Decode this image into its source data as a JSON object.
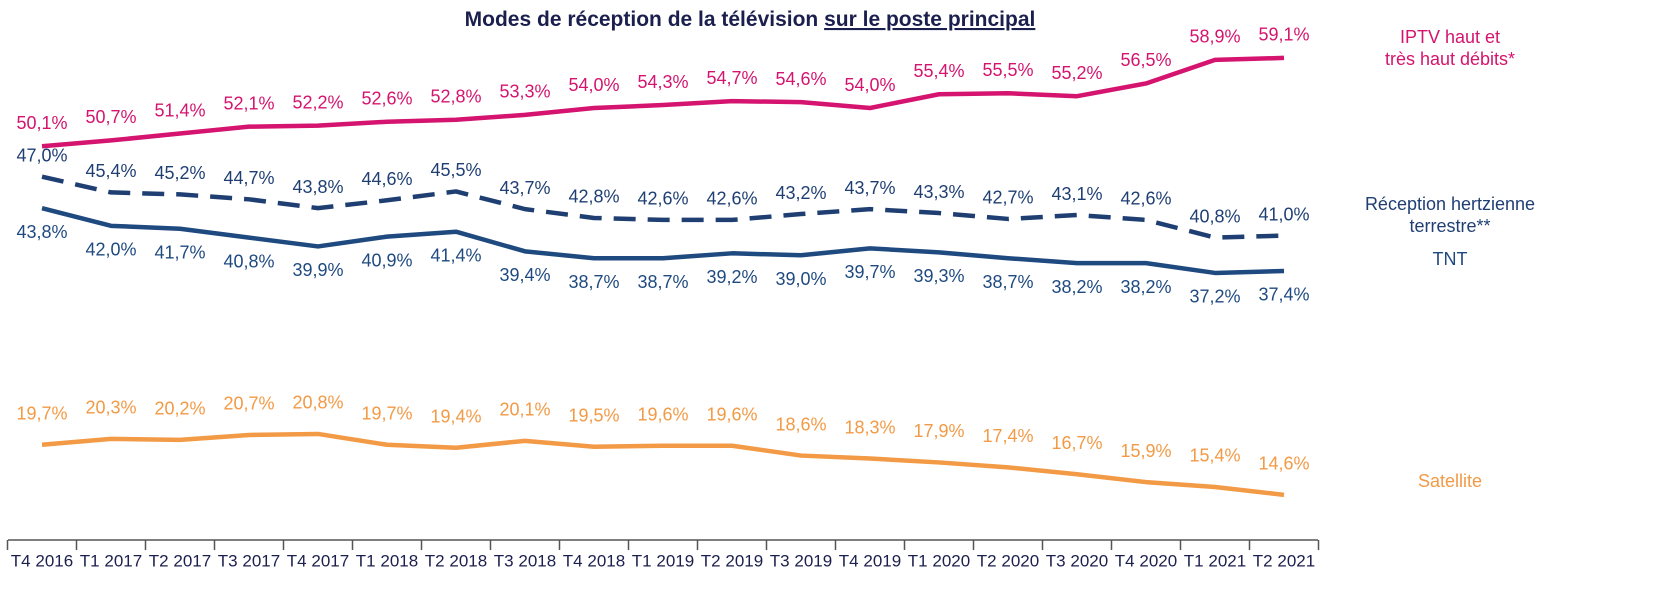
{
  "chart_data": {
    "type": "line",
    "title": "Modes de réception de la télévision",
    "title_underlined": "sur le poste principal",
    "categories": [
      "T4 2016",
      "T1 2017",
      "T2 2017",
      "T3 2017",
      "T4 2017",
      "T1 2018",
      "T2 2018",
      "T3 2018",
      "T4 2018",
      "T1 2019",
      "T2 2019",
      "T3 2019",
      "T4 2019",
      "T1 2020",
      "T2 2020",
      "T3 2020",
      "T4 2020",
      "T1 2021",
      "T2 2021"
    ],
    "ylim": [
      10,
      65
    ],
    "series": [
      {
        "name": "IPTV haut et\ntrès haut débits*",
        "color": "#d4146e",
        "dash": false,
        "values": [
          50.1,
          50.7,
          51.4,
          52.1,
          52.2,
          52.6,
          52.8,
          53.3,
          54.0,
          54.3,
          54.7,
          54.6,
          54.0,
          55.4,
          55.5,
          55.2,
          56.5,
          58.9,
          59.1
        ],
        "value_labels": [
          "50,1%",
          "50,7%",
          "51,4%",
          "52,1%",
          "52,2%",
          "52,6%",
          "52,8%",
          "53,3%",
          "54,0%",
          "54,3%",
          "54,7%",
          "54,6%",
          "54,0%",
          "55,4%",
          "55,5%",
          "55,2%",
          "56,5%",
          "58,9%",
          "59,1%"
        ]
      },
      {
        "name": "Réception hertzienne\nterrestre**",
        "color": "#1f3f73",
        "dash": true,
        "values": [
          47.0,
          45.4,
          45.2,
          44.7,
          43.8,
          44.6,
          45.5,
          43.7,
          42.8,
          42.6,
          42.6,
          43.2,
          43.7,
          43.3,
          42.7,
          43.1,
          42.6,
          40.8,
          41.0
        ],
        "value_labels": [
          "47,0%",
          "45,4%",
          "45,2%",
          "44,7%",
          "43,8%",
          "44,6%",
          "45,5%",
          "43,7%",
          "42,8%",
          "42,6%",
          "42,6%",
          "43,2%",
          "43,7%",
          "43,3%",
          "42,7%",
          "43,1%",
          "42,6%",
          "40,8%",
          "41,0%"
        ]
      },
      {
        "name": "TNT",
        "color": "#1f4a80",
        "dash": false,
        "values": [
          43.8,
          42.0,
          41.7,
          40.8,
          39.9,
          40.9,
          41.4,
          39.4,
          38.7,
          38.7,
          39.2,
          39.0,
          39.7,
          39.3,
          38.7,
          38.2,
          38.2,
          37.2,
          37.4
        ],
        "value_labels": [
          "43,8%",
          "42,0%",
          "41,7%",
          "40,8%",
          "39,9%",
          "40,9%",
          "41,4%",
          "39,4%",
          "38,7%",
          "38,7%",
          "39,2%",
          "39,0%",
          "39,7%",
          "39,3%",
          "38,7%",
          "38,2%",
          "38,2%",
          "37,2%",
          "37,4%"
        ]
      },
      {
        "name": "Satellite",
        "color": "#f29a45",
        "dash": false,
        "values": [
          19.7,
          20.3,
          20.2,
          20.7,
          20.8,
          19.7,
          19.4,
          20.1,
          19.5,
          19.6,
          19.6,
          18.6,
          18.3,
          17.9,
          17.4,
          16.7,
          15.9,
          15.4,
          14.6
        ],
        "value_labels": [
          "19,7%",
          "20,3%",
          "20,2%",
          "20,7%",
          "20,8%",
          "19,7%",
          "19,4%",
          "20,1%",
          "19,5%",
          "19,6%",
          "19,6%",
          "18,6%",
          "18,3%",
          "17,9%",
          "17,4%",
          "16,7%",
          "15,9%",
          "15,4%",
          "14,6%"
        ]
      }
    ]
  }
}
